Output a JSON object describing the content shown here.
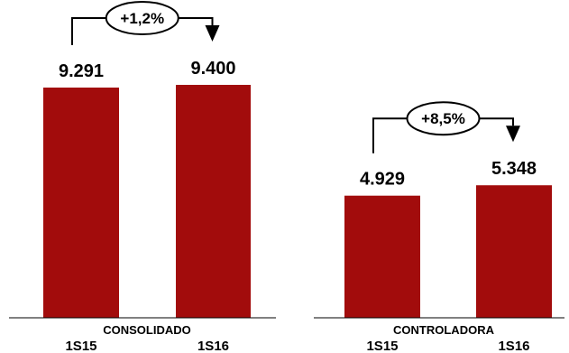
{
  "chart_data": [
    {
      "type": "bar",
      "group_label": "CONSOLIDADO",
      "categories": [
        "1S15",
        "1S16"
      ],
      "values": [
        9291,
        9400
      ],
      "value_labels": [
        "9.291",
        "9.400"
      ],
      "growth_label": "+1,2%",
      "ylim": [
        0,
        10000
      ],
      "bar_color": "#A20C0C"
    },
    {
      "type": "bar",
      "group_label": "CONTROLADORA",
      "categories": [
        "1S15",
        "1S16"
      ],
      "values": [
        4929,
        5348
      ],
      "value_labels": [
        "4.929",
        "5.348"
      ],
      "growth_label": "+8,5%",
      "ylim": [
        0,
        10000
      ],
      "bar_color": "#A20C0C"
    }
  ]
}
